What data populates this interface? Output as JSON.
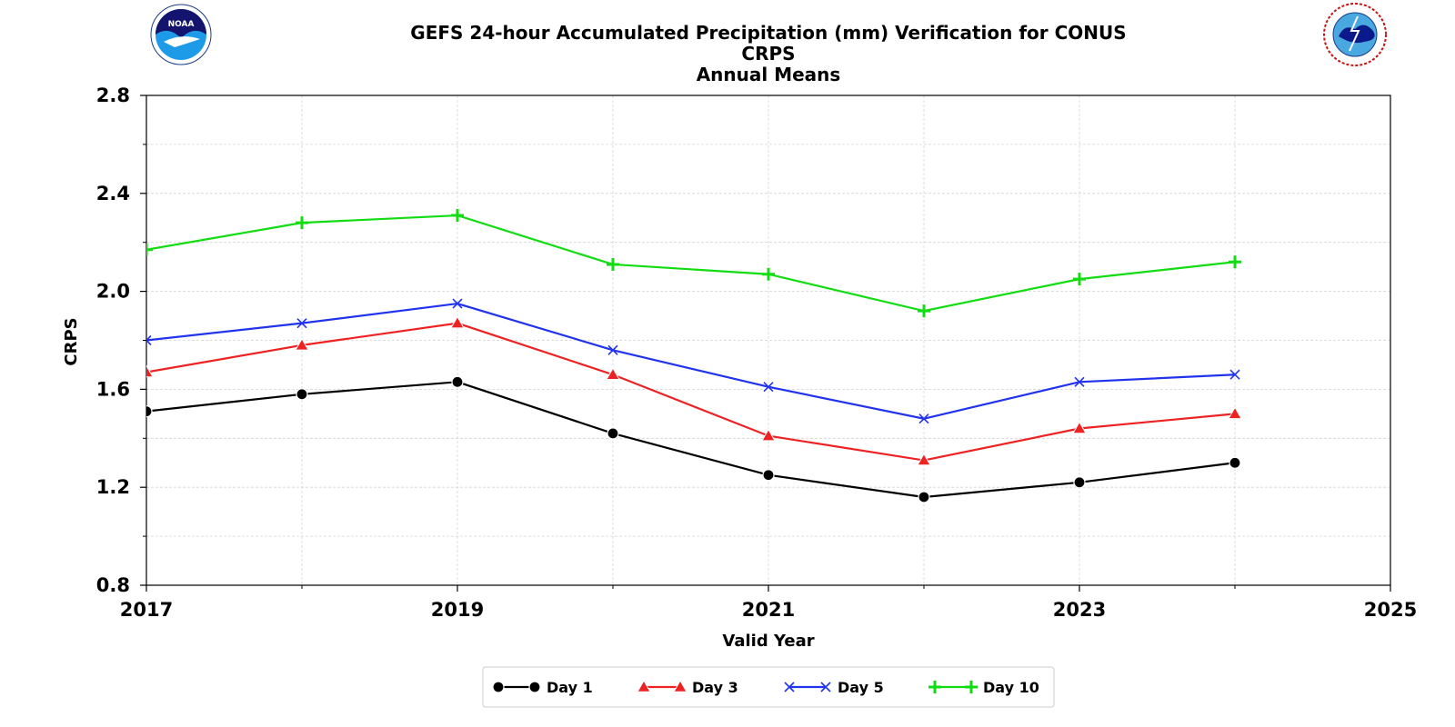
{
  "chart_data": {
    "type": "line",
    "title_lines": [
      "GEFS 24-hour Accumulated Precipitation (mm) Verification for CONUS",
      "CRPS",
      "Annual Means"
    ],
    "xlabel": "Valid Year",
    "ylabel": "CRPS",
    "xlim": [
      2017,
      2025
    ],
    "ylim": [
      0.8,
      2.8
    ],
    "x_major_ticks": [
      2017,
      2019,
      2021,
      2023,
      2025
    ],
    "x_minor_ticks": [
      2018,
      2020,
      2022,
      2024
    ],
    "y_major_ticks": [
      0.8,
      1.2,
      1.6,
      2.0,
      2.4,
      2.8
    ],
    "y_minor_ticks": [
      1.0,
      1.4,
      1.8,
      2.2,
      2.6
    ],
    "y_tick_labels": [
      "0.8",
      "1.2",
      "1.6",
      "2.0",
      "2.4",
      "2.8"
    ],
    "x_tick_labels": [
      "2017",
      "2019",
      "2021",
      "2023",
      "2025"
    ],
    "grid": true,
    "legend_position": "bottom-center",
    "x": [
      2017,
      2018,
      2019,
      2020,
      2021,
      2022,
      2023,
      2024
    ],
    "series": [
      {
        "name": "Day 1",
        "color": "#000000",
        "marker": "circle",
        "values": [
          1.51,
          1.58,
          1.63,
          1.42,
          1.25,
          1.16,
          1.22,
          1.3
        ]
      },
      {
        "name": "Day 3",
        "color": "#ee2222",
        "marker": "triangle",
        "values": [
          1.67,
          1.78,
          1.87,
          1.66,
          1.41,
          1.31,
          1.44,
          1.5
        ]
      },
      {
        "name": "Day 5",
        "color": "#2233ee",
        "marker": "x",
        "values": [
          1.8,
          1.87,
          1.95,
          1.76,
          1.61,
          1.48,
          1.63,
          1.66
        ]
      },
      {
        "name": "Day 10",
        "color": "#11dd11",
        "marker": "plus",
        "values": [
          2.17,
          2.28,
          2.31,
          2.11,
          2.07,
          1.92,
          2.05,
          2.12
        ]
      }
    ]
  },
  "logos": {
    "left": {
      "icon": "noaa-logo",
      "text": "NOAA"
    },
    "right": {
      "icon": "nws-logo"
    }
  }
}
